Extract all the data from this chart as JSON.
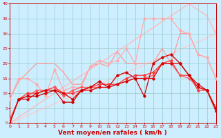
{
  "x": [
    0,
    1,
    2,
    3,
    4,
    5,
    6,
    7,
    8,
    9,
    10,
    11,
    12,
    13,
    14,
    15,
    16,
    17,
    18,
    19,
    20,
    21,
    22,
    23
  ],
  "series": [
    {
      "y": [
        0,
        8,
        8,
        10,
        11,
        11,
        10,
        8,
        11,
        11,
        12,
        12,
        13,
        14,
        15,
        15,
        15,
        20,
        20,
        20,
        16,
        12,
        11,
        4
      ],
      "color": "#dd0000",
      "lw": 0.9,
      "marker": "D",
      "ms": 1.8,
      "zorder": 5
    },
    {
      "y": [
        0,
        8,
        9,
        9,
        10,
        11,
        7,
        7,
        11,
        12,
        14,
        12,
        16,
        17,
        15,
        9,
        20,
        22,
        23,
        20,
        16,
        13,
        11,
        5
      ],
      "color": "#cc0000",
      "lw": 0.9,
      "marker": "D",
      "ms": 1.8,
      "zorder": 5
    },
    {
      "y": [
        1,
        8,
        10,
        10,
        11,
        12,
        10,
        10,
        11,
        12,
        13,
        13,
        13,
        15,
        16,
        16,
        17,
        20,
        21,
        16,
        16,
        11,
        11,
        5
      ],
      "color": "#ff3333",
      "lw": 0.9,
      "marker": "D",
      "ms": 1.8,
      "zorder": 4
    },
    {
      "y": [
        1,
        8,
        9,
        11,
        11,
        12,
        9,
        11,
        12,
        12,
        12,
        12,
        13,
        14,
        15,
        15,
        16,
        20,
        20,
        16,
        15,
        12,
        11,
        5
      ],
      "color": "#ff5555",
      "lw": 0.9,
      "marker": "D",
      "ms": 1.5,
      "zorder": 4
    },
    {
      "y": [
        8,
        15,
        15,
        13,
        9,
        18,
        11,
        12,
        12,
        19,
        21,
        20,
        21,
        25,
        20,
        35,
        35,
        35,
        35,
        31,
        30,
        23,
        22,
        15
      ],
      "color": "#ffaaaa",
      "lw": 0.9,
      "marker": "D",
      "ms": 1.8,
      "zorder": 3
    },
    {
      "y": [
        8,
        14,
        17,
        20,
        20,
        20,
        17,
        13,
        13,
        19,
        20,
        19,
        24,
        20,
        20,
        20,
        20,
        25,
        20,
        30,
        30,
        23,
        22,
        15
      ],
      "color": "#ff9999",
      "lw": 0.9,
      "marker": null,
      "ms": 0,
      "zorder": 2
    },
    {
      "y": [
        0,
        1.3,
        2.6,
        3.9,
        5.2,
        6.5,
        7.8,
        9.1,
        10.4,
        11.7,
        13,
        14.3,
        15.6,
        16.9,
        18.2,
        19.5,
        20.8,
        22.1,
        23.4,
        24.7,
        26,
        27.3,
        28.6,
        30
      ],
      "color": "#ffcccc",
      "lw": 1.0,
      "marker": null,
      "ms": 0,
      "zorder": 1
    },
    {
      "y": [
        0,
        2,
        4,
        6,
        8,
        10,
        12,
        14,
        16,
        18,
        20,
        22,
        24,
        26,
        28,
        30,
        32,
        34,
        36,
        38,
        40,
        38,
        36,
        30
      ],
      "color": "#ffbbbb",
      "lw": 1.0,
      "marker": null,
      "ms": 0,
      "zorder": 1
    }
  ],
  "xlim": [
    0,
    23
  ],
  "ylim": [
    0,
    40
  ],
  "yticks": [
    0,
    5,
    10,
    15,
    20,
    25,
    30,
    35,
    40
  ],
  "xticks": [
    0,
    1,
    2,
    3,
    4,
    5,
    6,
    7,
    8,
    9,
    10,
    11,
    12,
    13,
    14,
    15,
    16,
    17,
    18,
    19,
    20,
    21,
    22,
    23
  ],
  "xlabel": "Vent moyen/en rafales ( km/h )",
  "bg_color": "#cceeff",
  "grid_color": "#99cccc",
  "tick_color": "#cc0000",
  "label_color": "#cc0000",
  "tick_fontsize": 4.5,
  "xlabel_fontsize": 6.5
}
